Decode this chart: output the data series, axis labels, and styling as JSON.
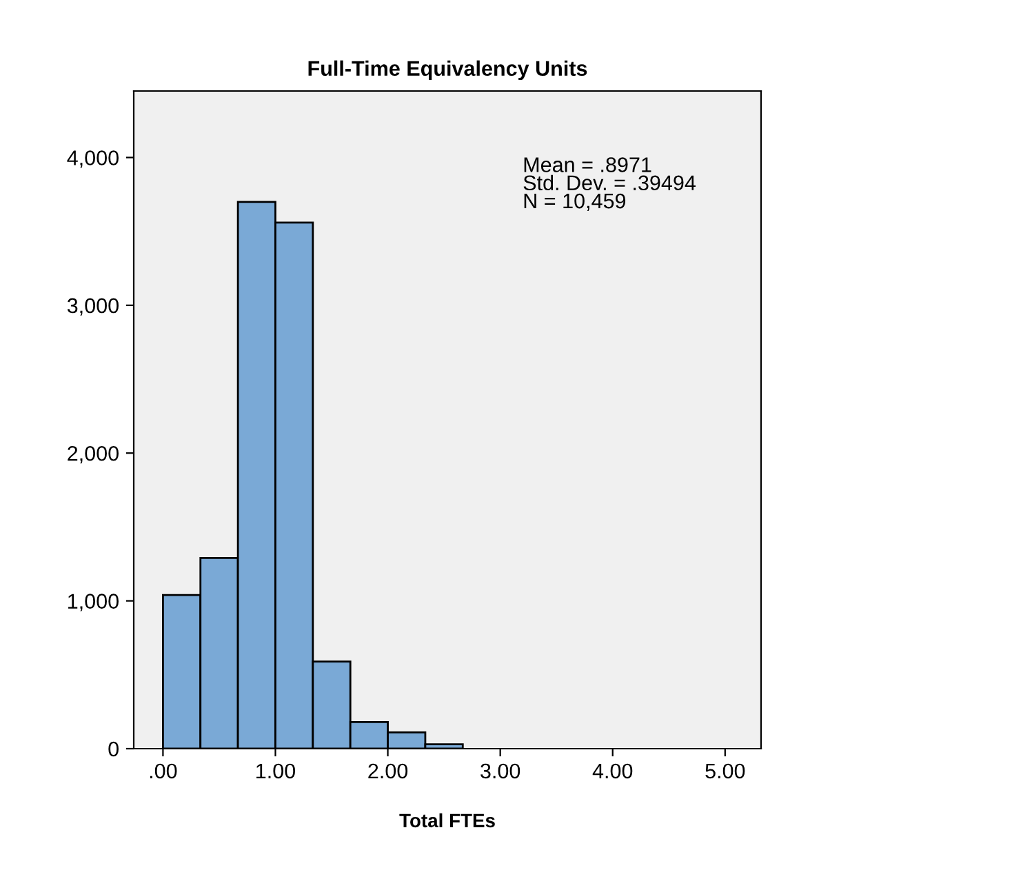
{
  "chart_data": {
    "type": "histogram",
    "title": "Full-Time Equivalency Units",
    "xlabel": "Total FTEs",
    "bins": [
      0,
      0.3333,
      0.6667,
      1,
      1.3333,
      1.6667,
      2,
      2.3333,
      2.6667,
      3,
      3.3333,
      3.6667,
      4,
      4.3333,
      4.6667,
      5
    ],
    "values": [
      1040,
      1290,
      3700,
      3560,
      590,
      180,
      110,
      30,
      null,
      null,
      null,
      null,
      null,
      null,
      null
    ],
    "color": "#7aa9d6",
    "xlim": [
      -0.26,
      5.32
    ],
    "xticks": [
      {
        "value": 0,
        "label": ".00"
      },
      {
        "value": 1,
        "label": "1.00"
      },
      {
        "value": 2,
        "label": "2.00"
      },
      {
        "value": 3,
        "label": "3.00"
      },
      {
        "value": 4,
        "label": "4.00"
      },
      {
        "value": 5,
        "label": "5.00"
      }
    ],
    "ylim": [
      0,
      4450
    ],
    "yticks": [
      {
        "value": 0,
        "label": "0"
      },
      {
        "value": 1000,
        "label": "1,000"
      },
      {
        "value": 2000,
        "label": "2,000"
      },
      {
        "value": 3000,
        "label": "3,000"
      },
      {
        "value": 4000,
        "label": "4,000"
      }
    ],
    "annotations": [
      "Mean = .8971\nStd. Dev. = .39494\nN = 10,459"
    ],
    "grid": false
  }
}
